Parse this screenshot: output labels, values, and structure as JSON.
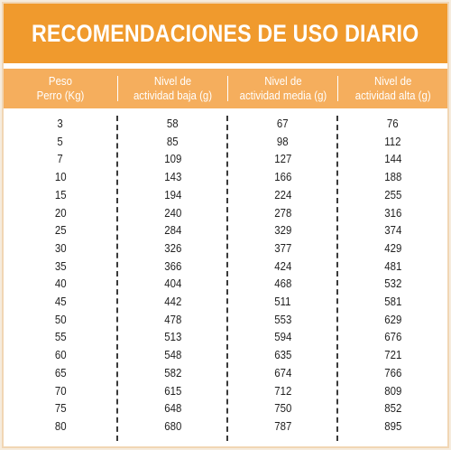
{
  "title": "RECOMENDACIONES DE USO DIARIO",
  "columns": [
    "Peso\nPerro (Kg)",
    "Nivel de\nactividad baja (g)",
    "Nivel de\nactividad media (g)",
    "Nivel de\nactividad alta (g)"
  ],
  "rows": [
    [
      "3",
      "58",
      "67",
      "76"
    ],
    [
      "5",
      "85",
      "98",
      "112"
    ],
    [
      "7",
      "109",
      "127",
      "144"
    ],
    [
      "10",
      "143",
      "166",
      "188"
    ],
    [
      "15",
      "194",
      "224",
      "255"
    ],
    [
      "20",
      "240",
      "278",
      "316"
    ],
    [
      "25",
      "284",
      "329",
      "374"
    ],
    [
      "30",
      "326",
      "377",
      "429"
    ],
    [
      "35",
      "366",
      "424",
      "481"
    ],
    [
      "40",
      "404",
      "468",
      "532"
    ],
    [
      "45",
      "442",
      "511",
      "581"
    ],
    [
      "50",
      "478",
      "553",
      "629"
    ],
    [
      "55",
      "513",
      "594",
      "676"
    ],
    [
      "60",
      "548",
      "635",
      "721"
    ],
    [
      "65",
      "582",
      "674",
      "766"
    ],
    [
      "70",
      "615",
      "712",
      "809"
    ],
    [
      "75",
      "648",
      "750",
      "852"
    ],
    [
      "80",
      "680",
      "787",
      "895"
    ]
  ],
  "colors": {
    "title_bar": "#f09a2d",
    "header_bar": "#f5ae5d",
    "text": "#1f1f1f",
    "background": "#f6ecdd"
  }
}
